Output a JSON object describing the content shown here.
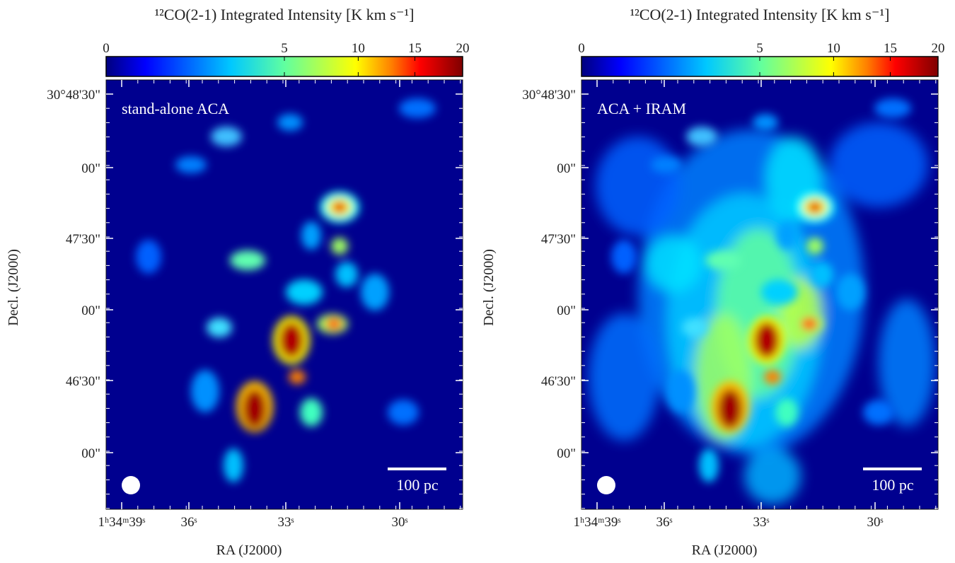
{
  "chart_data": [
    {
      "type": "image-map",
      "title": "¹²CO(2-1) Integrated Intensity  [K km s⁻¹]",
      "colorbar": {
        "lim": [
          0,
          20
        ],
        "ticks": [
          0,
          5,
          10,
          15,
          20
        ],
        "scale": "sqrt"
      },
      "annotation": "stand-alone ACA",
      "scalebar": "100 pc",
      "x_label": "RA (J2000)",
      "y_label": "Decl. (J2000)",
      "xticks": [
        "1ʰ34ᵐ39ˢ",
        "36ˢ",
        "33ˢ",
        "30ˢ"
      ],
      "yticks": [
        "30°48'30\"",
        "00\"",
        "47'30\"",
        "00\"",
        "46'30\"",
        "00\""
      ]
    },
    {
      "type": "image-map",
      "title": "¹²CO(2-1) Integrated Intensity  [K km s⁻¹]",
      "colorbar": {
        "lim": [
          0,
          20
        ],
        "ticks": [
          0,
          5,
          10,
          15,
          20
        ],
        "scale": "sqrt"
      },
      "annotation": "ACA + IRAM",
      "scalebar": "100 pc",
      "x_label": "RA (J2000)",
      "y_label": "Decl. (J2000)",
      "xticks": [
        "1ʰ34ᵐ39ˢ",
        "36ˢ",
        "33ˢ",
        "30ˢ"
      ],
      "yticks": [
        "30°48'30\"",
        "00\"",
        "47'30\"",
        "00\"",
        "46'30\"",
        "00\""
      ]
    }
  ]
}
